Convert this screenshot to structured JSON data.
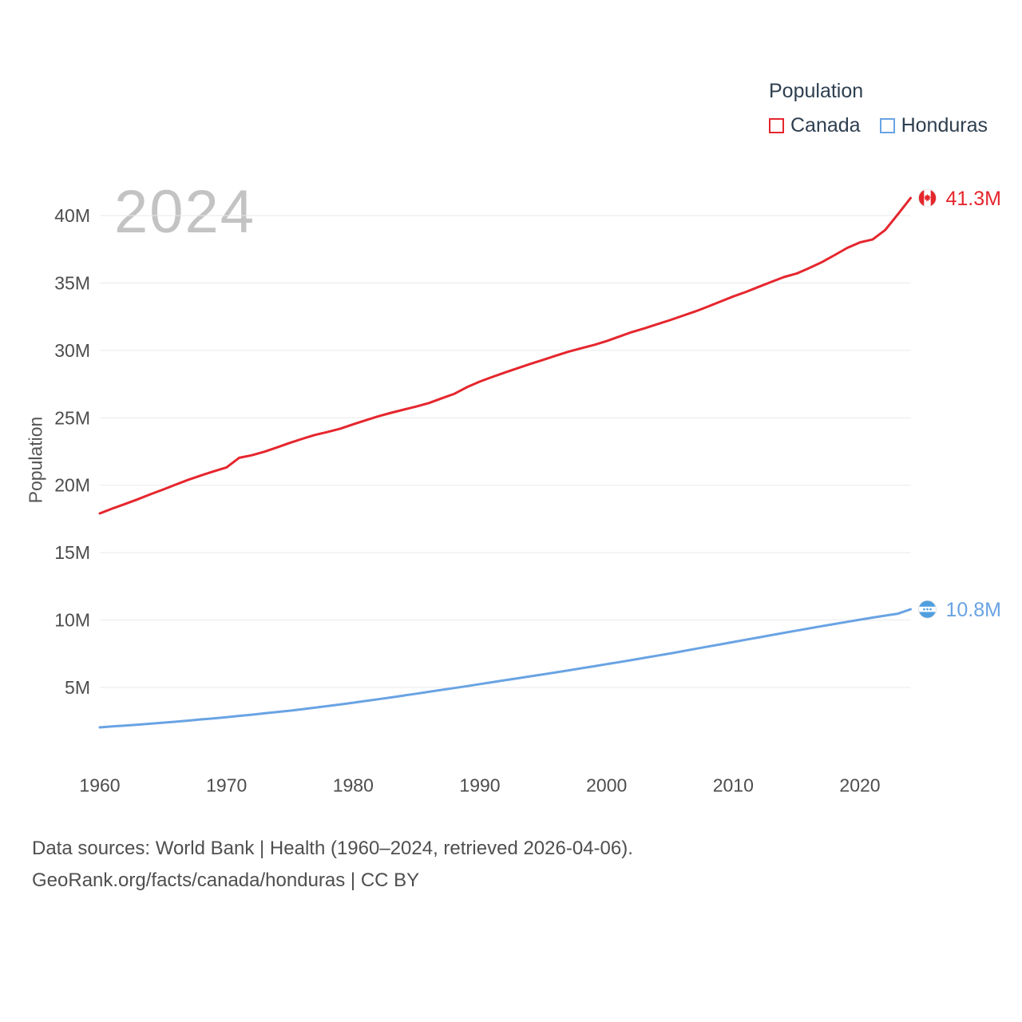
{
  "legend": {
    "title": "Population",
    "items": [
      {
        "label": "Canada",
        "color": "#e5262d"
      },
      {
        "label": "Honduras",
        "color": "#69a3e3"
      }
    ]
  },
  "footer": {
    "line1": "Data sources: World Bank | Health (1960–2024, retrieved 2026-04-06).",
    "line2": "GeoRank.org/facts/canada/honduras | CC BY"
  },
  "chart_data": {
    "type": "line",
    "year_label": "2024",
    "ylabel": "Population",
    "xlabel": "",
    "grid": "horizontal",
    "legend_position": "top-right",
    "ylim": [
      0,
      43
    ],
    "x_ticks": [
      1960,
      1970,
      1980,
      1990,
      2000,
      2010,
      2020
    ],
    "y_ticks": [
      {
        "value": 5,
        "label": "5M"
      },
      {
        "value": 10,
        "label": "10M"
      },
      {
        "value": 15,
        "label": "15M"
      },
      {
        "value": 20,
        "label": "20M"
      },
      {
        "value": 25,
        "label": "25M"
      },
      {
        "value": 30,
        "label": "30M"
      },
      {
        "value": 35,
        "label": "35M"
      },
      {
        "value": 40,
        "label": "40M"
      }
    ],
    "x": [
      1960,
      1961,
      1962,
      1963,
      1964,
      1965,
      1966,
      1967,
      1968,
      1969,
      1970,
      1971,
      1972,
      1973,
      1974,
      1975,
      1976,
      1977,
      1978,
      1979,
      1980,
      1981,
      1982,
      1983,
      1984,
      1985,
      1986,
      1987,
      1988,
      1989,
      1990,
      1991,
      1992,
      1993,
      1994,
      1995,
      1996,
      1997,
      1998,
      1999,
      2000,
      2001,
      2002,
      2003,
      2004,
      2005,
      2006,
      2007,
      2008,
      2009,
      2010,
      2011,
      2012,
      2013,
      2014,
      2015,
      2016,
      2017,
      2018,
      2019,
      2020,
      2021,
      2022,
      2023,
      2024
    ],
    "series": [
      {
        "name": "Canada",
        "flag": "canada",
        "color": "#e5262d",
        "end_label": "41.3M",
        "values": [
          17.91,
          18.27,
          18.61,
          18.96,
          19.33,
          19.68,
          20.05,
          20.41,
          20.73,
          21.03,
          21.32,
          22.03,
          22.22,
          22.49,
          22.81,
          23.14,
          23.45,
          23.73,
          23.96,
          24.2,
          24.52,
          24.82,
          25.12,
          25.37,
          25.61,
          25.84,
          26.1,
          26.45,
          26.79,
          27.28,
          27.69,
          28.04,
          28.37,
          28.68,
          29.0,
          29.3,
          29.61,
          29.91,
          30.16,
          30.4,
          30.69,
          31.02,
          31.36,
          31.64,
          31.94,
          32.24,
          32.57,
          32.89,
          33.25,
          33.63,
          34.0,
          34.34,
          34.71,
          35.08,
          35.44,
          35.7,
          36.11,
          36.55,
          37.07,
          37.6,
          38.01,
          38.23,
          38.93,
          40.1,
          41.3
        ]
      },
      {
        "name": "Honduras",
        "flag": "honduras",
        "color": "#69a3e3",
        "end_label": "10.8M",
        "values": [
          2.04,
          2.11,
          2.17,
          2.24,
          2.31,
          2.39,
          2.46,
          2.54,
          2.63,
          2.71,
          2.8,
          2.89,
          2.98,
          3.08,
          3.18,
          3.28,
          3.39,
          3.5,
          3.62,
          3.74,
          3.87,
          4.0,
          4.13,
          4.26,
          4.4,
          4.54,
          4.68,
          4.82,
          4.96,
          5.1,
          5.25,
          5.39,
          5.54,
          5.68,
          5.83,
          5.97,
          6.12,
          6.27,
          6.42,
          6.57,
          6.73,
          6.88,
          7.04,
          7.2,
          7.36,
          7.52,
          7.69,
          7.86,
          8.03,
          8.2,
          8.37,
          8.54,
          8.71,
          8.88,
          9.05,
          9.22,
          9.38,
          9.55,
          9.71,
          9.87,
          10.03,
          10.18,
          10.33,
          10.47,
          10.8
        ]
      }
    ]
  }
}
